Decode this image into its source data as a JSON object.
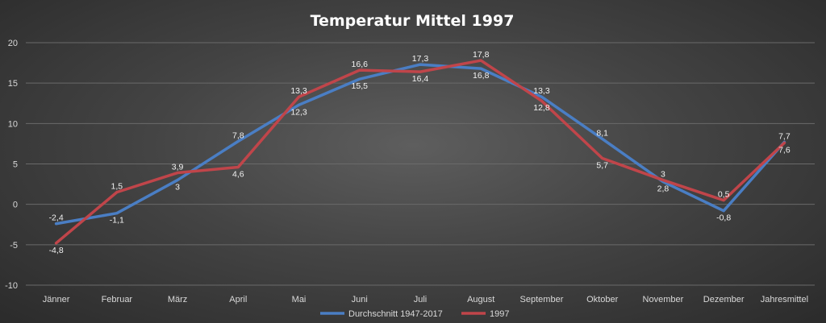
{
  "chart_data": {
    "type": "line",
    "title": "Temperatur Mittel 1997",
    "categories": [
      "Jänner",
      "Februar",
      "März",
      "April",
      "Mai",
      "Juni",
      "Juli",
      "August",
      "September",
      "Oktober",
      "November",
      "Dezember",
      "Jahresmittel"
    ],
    "ylim": [
      -10,
      20
    ],
    "yticks": [
      -10,
      -5,
      0,
      5,
      10,
      15,
      20
    ],
    "grid": true,
    "legend": "bottom",
    "series": [
      {
        "name": "Durchschnitt 1947-2017",
        "color": "#4a7ec4",
        "values": [
          -2.4,
          -1.1,
          3,
          7.8,
          12.3,
          15.5,
          17.3,
          16.8,
          13.3,
          8.1,
          2.8,
          -0.8,
          7.7
        ],
        "labels": [
          "-2,4",
          "-1,1",
          "3",
          "7,8",
          "12,3",
          "15,5",
          "17,3",
          "16,8",
          "13,3",
          "8,1",
          "2,8",
          "-0,8",
          "7,7"
        ]
      },
      {
        "name": "1997",
        "color": "#c0454a",
        "values": [
          -4.8,
          1.5,
          3.9,
          4.6,
          13.3,
          16.6,
          16.4,
          17.8,
          12.8,
          5.7,
          3,
          0.5,
          7.6
        ],
        "labels": [
          "-4,8",
          "1,5",
          "3,9",
          "4,6",
          "13,3",
          "16,6",
          "16,4",
          "17,8",
          "12,8",
          "5,7",
          "3",
          "0,5",
          "7,6"
        ]
      }
    ]
  }
}
